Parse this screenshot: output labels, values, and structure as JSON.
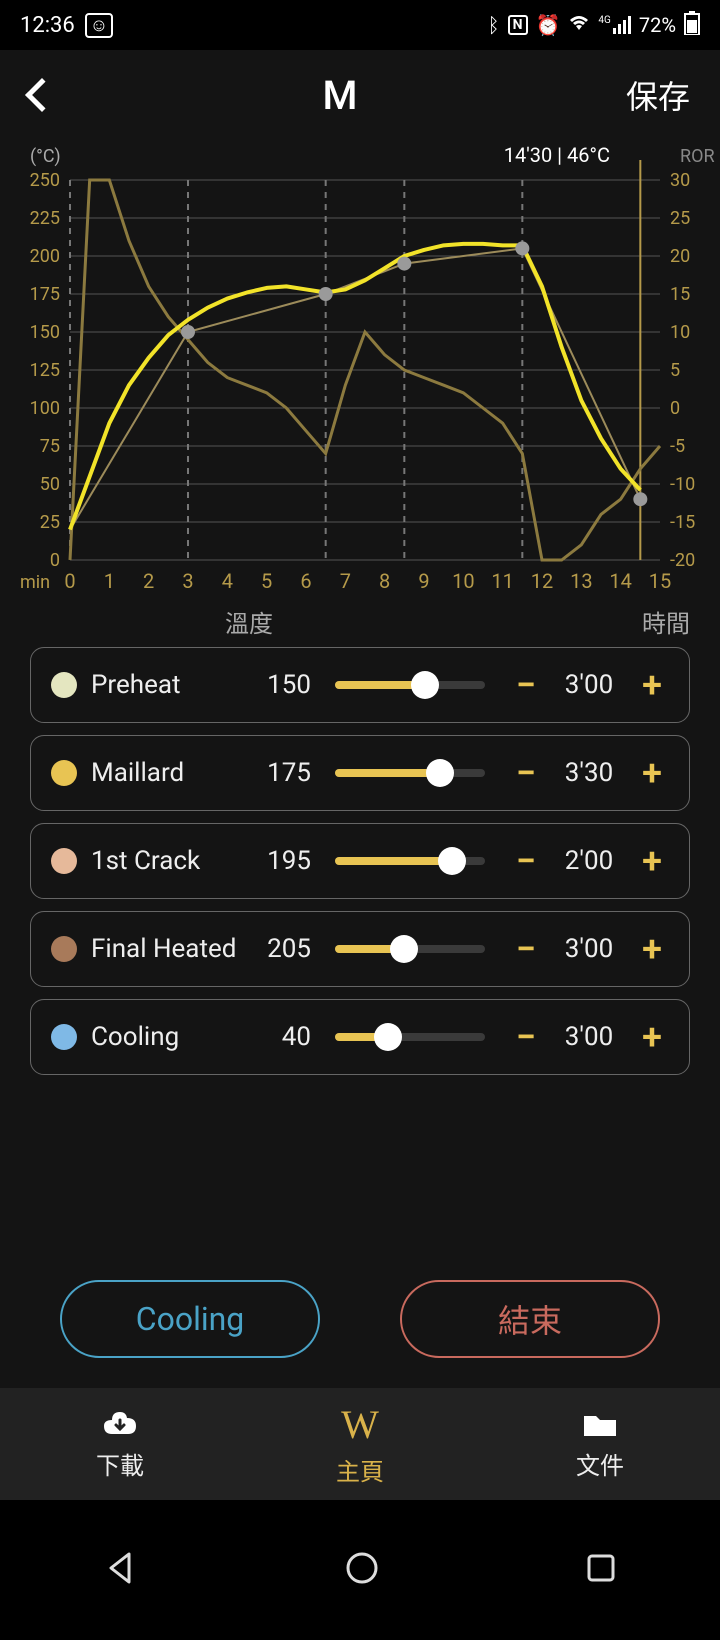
{
  "status": {
    "time": "12:36",
    "battery": "72%",
    "signal_label": "4G"
  },
  "header": {
    "title": "M",
    "save_label": "保存"
  },
  "chart": {
    "type": "line",
    "left_axis_label": "(°C)",
    "right_axis_label": "ROR",
    "x_axis_label": "min",
    "cursor_label": "14'30 | 46°C",
    "x_min": 0,
    "x_max": 15,
    "y_left_min": 0,
    "y_left_max": 250,
    "y_right_min": -20,
    "y_right_max": 30,
    "x_ticks": [
      0,
      1,
      2,
      3,
      4,
      5,
      6,
      7,
      8,
      9,
      10,
      11,
      12,
      13,
      14,
      15
    ],
    "y_left_ticks": [
      0,
      25,
      50,
      75,
      100,
      125,
      150,
      175,
      200,
      225,
      250
    ],
    "y_right_ticks": [
      -20,
      -15,
      -10,
      -5,
      0,
      5,
      10,
      15,
      20,
      25,
      30
    ],
    "grid_color": "#555555",
    "bg_color": "#141414",
    "axis_text_color": "#b59a4a",
    "temp_curve": {
      "color": "#f2e329",
      "width": 4,
      "points": [
        [
          0,
          20
        ],
        [
          0.5,
          55
        ],
        [
          1,
          90
        ],
        [
          1.5,
          115
        ],
        [
          2,
          133
        ],
        [
          2.5,
          148
        ],
        [
          3,
          158
        ],
        [
          3.5,
          166
        ],
        [
          4,
          172
        ],
        [
          4.5,
          176
        ],
        [
          5,
          179
        ],
        [
          5.5,
          180
        ],
        [
          6,
          178
        ],
        [
          6.5,
          176
        ],
        [
          7,
          178
        ],
        [
          7.5,
          184
        ],
        [
          8,
          192
        ],
        [
          8.5,
          200
        ],
        [
          9,
          204
        ],
        [
          9.5,
          207
        ],
        [
          10,
          208
        ],
        [
          10.5,
          208
        ],
        [
          11,
          207
        ],
        [
          11.5,
          207
        ],
        [
          12,
          180
        ],
        [
          12.5,
          140
        ],
        [
          13,
          105
        ],
        [
          13.5,
          80
        ],
        [
          14,
          60
        ],
        [
          14.5,
          46
        ]
      ]
    },
    "ror_curve": {
      "color": "#8c7a3f",
      "width": 3,
      "points_ror": [
        [
          0,
          -20
        ],
        [
          0.5,
          30
        ],
        [
          1,
          30
        ],
        [
          1.5,
          22
        ],
        [
          2,
          16
        ],
        [
          2.5,
          12
        ],
        [
          3,
          9
        ],
        [
          3.5,
          6
        ],
        [
          4,
          4
        ],
        [
          4.5,
          3
        ],
        [
          5,
          2
        ],
        [
          5.5,
          0
        ],
        [
          6,
          -3
        ],
        [
          6.5,
          -6
        ],
        [
          7,
          3
        ],
        [
          7.5,
          10
        ],
        [
          8,
          7
        ],
        [
          8.5,
          5
        ],
        [
          9,
          4
        ],
        [
          9.5,
          3
        ],
        [
          10,
          2
        ],
        [
          10.5,
          0
        ],
        [
          11,
          -2
        ],
        [
          11.5,
          -6
        ],
        [
          12,
          -20
        ],
        [
          12.5,
          -20
        ],
        [
          13,
          -18
        ],
        [
          13.5,
          -14
        ],
        [
          14,
          -12
        ],
        [
          14.5,
          -8
        ],
        [
          15,
          -5
        ]
      ]
    },
    "setpoint_line": {
      "color": "#9c8b5a",
      "width": 2,
      "points": [
        [
          0,
          20
        ],
        [
          3,
          150
        ],
        [
          6.5,
          175
        ],
        [
          8.5,
          195
        ],
        [
          11.5,
          205
        ],
        [
          14.5,
          40
        ]
      ]
    },
    "marker_color": "#9a9a9a",
    "markers": [
      [
        3,
        150
      ],
      [
        6.5,
        175
      ],
      [
        8.5,
        195
      ],
      [
        11.5,
        205
      ],
      [
        14.5,
        40
      ]
    ],
    "phase_divider_color": "#777777",
    "phase_dividers_x": [
      0,
      3,
      6.5,
      8.5,
      11.5
    ],
    "cursor_x": 14.5,
    "cursor_color": "#b59a4a"
  },
  "columns": {
    "temp_header": "溫度",
    "time_header": "時間"
  },
  "phases": [
    {
      "name": "Preheat",
      "temp": 150,
      "time": "3'00",
      "dot_color": "#e4e6c0",
      "slider_pct": 0.6,
      "accent": "#e8c453"
    },
    {
      "name": "Maillard",
      "temp": 175,
      "time": "3'30",
      "dot_color": "#e8c453",
      "slider_pct": 0.7,
      "accent": "#e8c453"
    },
    {
      "name": "1st Crack",
      "temp": 195,
      "time": "2'00",
      "dot_color": "#e6b99a",
      "slider_pct": 0.78,
      "accent": "#e8c453"
    },
    {
      "name": "Final Heated",
      "temp": 205,
      "time": "3'00",
      "dot_color": "#a87a5a",
      "slider_pct": 0.46,
      "accent": "#e8c453"
    },
    {
      "name": "Cooling",
      "temp": 40,
      "time": "3'00",
      "dot_color": "#7fb9e6",
      "slider_pct": 0.35,
      "accent": "#e8c453"
    }
  ],
  "bottom": {
    "cooling_label": "Cooling",
    "cooling_color": "#4aa3c7",
    "end_label": "結束",
    "end_color": "#c96a5e"
  },
  "tabs": {
    "download_label": "下載",
    "home_label": "主頁",
    "files_label": "文件",
    "active_color": "#d9b24a",
    "inactive_color": "#eeeeee"
  }
}
